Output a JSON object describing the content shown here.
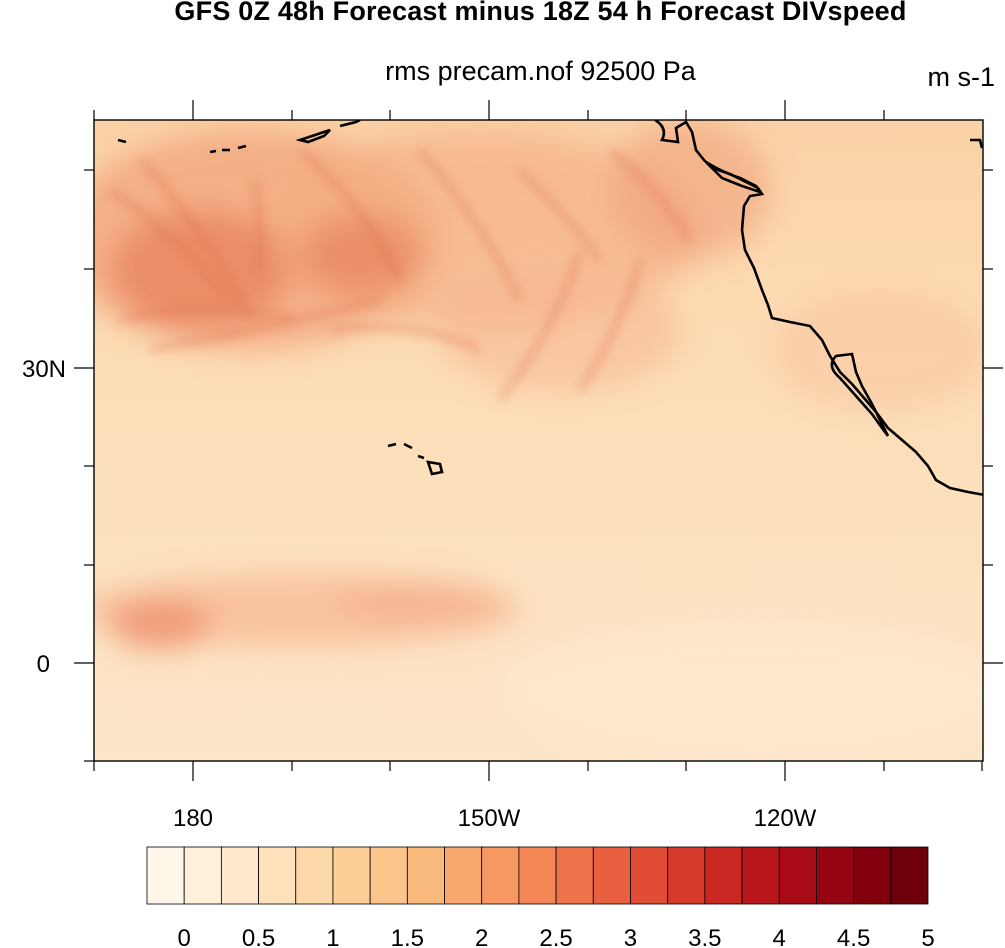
{
  "title": "GFS 0Z 48h Forecast minus 18Z 54 h Forecast DIVspeed",
  "subtitle": "rms precam.nof 92500 Pa",
  "units": "m s-1",
  "map": {
    "x_ticks": [
      "180",
      "150W",
      "120W"
    ],
    "y_ticks": [
      "30N",
      "0"
    ]
  },
  "colorbar": {
    "labels": [
      "0",
      "0.5",
      "1",
      "1.5",
      "2",
      "2.5",
      "3",
      "3.5",
      "4",
      "4.5",
      "5"
    ],
    "colors": [
      "#fff6ea",
      "#fff0dc",
      "#ffe9cc",
      "#ffe2bb",
      "#fdd8a9",
      "#fccf99",
      "#fbc58b",
      "#fab97d",
      "#f9a86f",
      "#f79862",
      "#f48656",
      "#ef734b",
      "#e96041",
      "#e04c36",
      "#d63a2c",
      "#c92822",
      "#b9161b",
      "#a80b16",
      "#960512",
      "#82000e",
      "#6d000b"
    ]
  }
}
